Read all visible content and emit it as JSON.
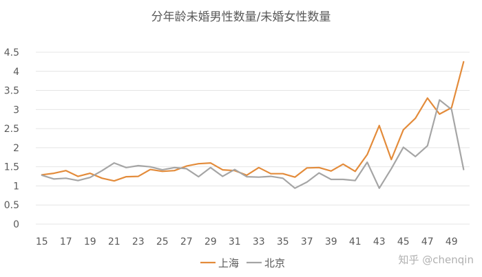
{
  "chart_data": {
    "type": "line",
    "title": "分年龄未婚男性数量/未婚女性数量",
    "xlabel": "",
    "ylabel": "",
    "x": [
      15,
      16,
      17,
      18,
      19,
      20,
      21,
      22,
      23,
      24,
      25,
      26,
      27,
      28,
      29,
      30,
      31,
      32,
      33,
      34,
      35,
      36,
      37,
      38,
      39,
      40,
      41,
      42,
      43,
      44,
      45,
      46,
      47,
      48,
      49,
      50
    ],
    "x_tick_labels": [
      "15",
      "17",
      "19",
      "21",
      "23",
      "25",
      "27",
      "29",
      "31",
      "33",
      "35",
      "37",
      "39",
      "41",
      "43",
      "45",
      "47",
      "49"
    ],
    "ylim": [
      0,
      4.5
    ],
    "y_ticks": [
      "0",
      "0.5",
      "1",
      "1.5",
      "2",
      "2.5",
      "3",
      "3.5",
      "4",
      "4.5"
    ],
    "grid": true,
    "legend_position": "bottom",
    "series": [
      {
        "name": "上海",
        "color": "#E38B3A",
        "values": [
          1.29,
          1.33,
          1.4,
          1.25,
          1.33,
          1.2,
          1.13,
          1.24,
          1.25,
          1.43,
          1.38,
          1.4,
          1.52,
          1.58,
          1.6,
          1.42,
          1.4,
          1.28,
          1.48,
          1.32,
          1.32,
          1.23,
          1.47,
          1.48,
          1.39,
          1.57,
          1.38,
          1.82,
          2.58,
          1.69,
          2.47,
          2.77,
          3.3,
          2.88,
          3.05,
          4.25
        ]
      },
      {
        "name": "北京",
        "color": "#A5A5A5",
        "values": [
          1.28,
          1.18,
          1.2,
          1.14,
          1.22,
          1.4,
          1.6,
          1.48,
          1.53,
          1.5,
          1.42,
          1.48,
          1.45,
          1.24,
          1.48,
          1.25,
          1.43,
          1.24,
          1.23,
          1.25,
          1.2,
          0.94,
          1.1,
          1.34,
          1.17,
          1.17,
          1.14,
          1.62,
          0.94,
          1.45,
          2.01,
          1.77,
          2.05,
          3.25,
          3.0,
          1.43
        ]
      }
    ]
  },
  "watermark": "知乎 @chenqin"
}
